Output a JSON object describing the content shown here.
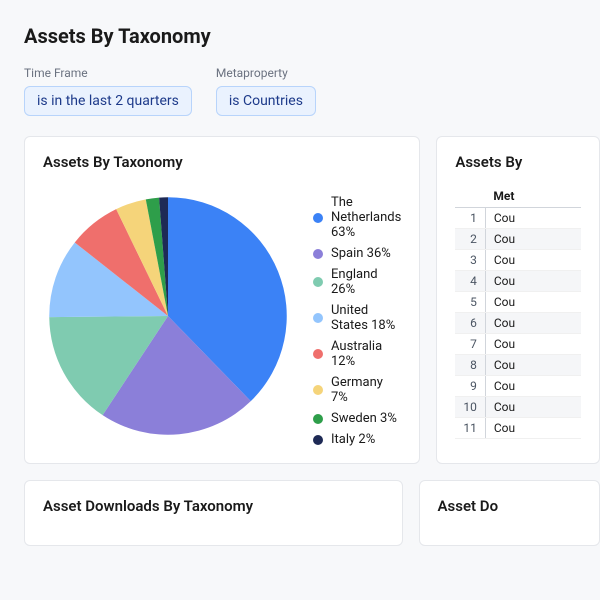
{
  "page": {
    "title": "Assets By Taxonomy"
  },
  "filters": {
    "time_frame": {
      "label": "Time Frame",
      "chip": "is in the last 2 quarters"
    },
    "metaproperty": {
      "label": "Metaproperty",
      "chip": "is Countries"
    }
  },
  "pie_card": {
    "title": "Assets By Taxonomy",
    "type": "pie",
    "background_color": "#ffffff",
    "border_color": "#e5e7eb",
    "legend_font_size": 13,
    "legend_text_color": "#1a1a1a",
    "series": [
      {
        "label": "The Netherlands",
        "pct": 63,
        "color": "#3b82f6"
      },
      {
        "label": "Spain",
        "pct": 36,
        "color": "#8b7fd9"
      },
      {
        "label": "England",
        "pct": 26,
        "color": "#7fcbb0"
      },
      {
        "label": "United States",
        "pct": 18,
        "color": "#93c5fd"
      },
      {
        "label": "Australia",
        "pct": 12,
        "color": "#ef6f6c"
      },
      {
        "label": "Germany",
        "pct": 7,
        "color": "#f5d47a"
      },
      {
        "label": "Sweden",
        "pct": 3,
        "color": "#2e9e4a"
      },
      {
        "label": "Italy",
        "pct": 2,
        "color": "#1e2a55"
      }
    ]
  },
  "table_card": {
    "title": "Assets By",
    "header": "Met",
    "row_prefix": "Cou",
    "row_count": 11,
    "font_size": 12,
    "alt_row_bg": "#f5f6f8",
    "border_color": "#d1d5db"
  },
  "bottom": {
    "left_title": "Asset Downloads By Taxonomy",
    "right_title": "Asset Do"
  }
}
